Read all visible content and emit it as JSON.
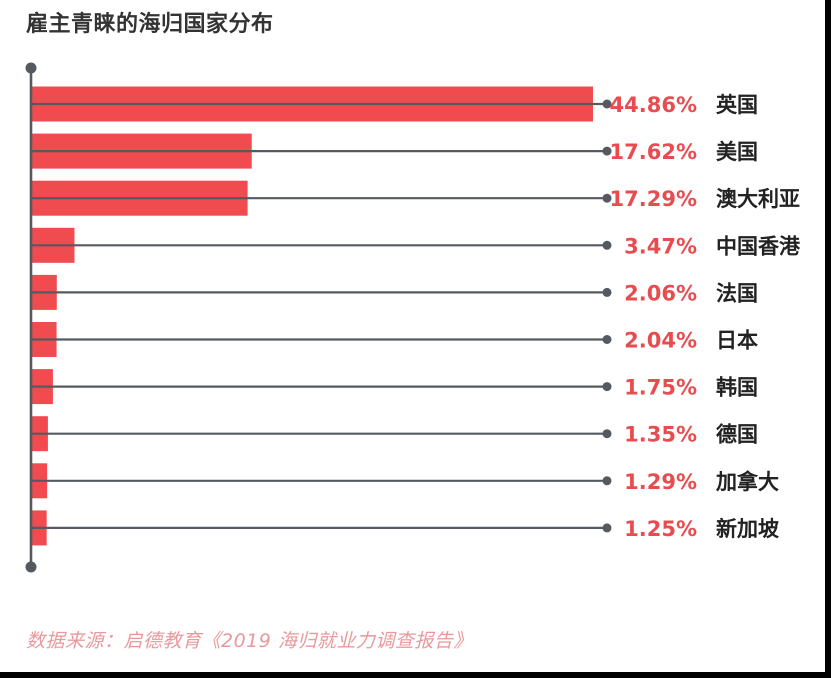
{
  "title": "雇主青睐的海归国家分布",
  "source": "数据来源：启德教育《2019 海归就业力调查报告》",
  "colors": {
    "bar": "#f04b4f",
    "line": "#555a60",
    "value_text": "#e84c4f",
    "category_text": "#222222",
    "source_text": "#e8999c"
  },
  "chart_data": {
    "type": "bar",
    "orientation": "horizontal",
    "title": "雇主青睐的海归国家分布",
    "unit": "%",
    "xlim": [
      0,
      100
    ],
    "categories": [
      "英国",
      "美国",
      "澳大利亚",
      "中国香港",
      "法国",
      "日本",
      "韩国",
      "德国",
      "加拿大",
      "新加坡"
    ],
    "values": [
      44.86,
      17.62,
      17.29,
      3.47,
      2.06,
      2.04,
      1.75,
      1.35,
      1.29,
      1.25
    ],
    "value_labels": [
      "44.86%",
      "17.62%",
      "17.29%",
      "3.47%",
      "2.06%",
      "2.04%",
      "1.75%",
      "1.35%",
      "1.29%",
      "1.25%"
    ]
  }
}
